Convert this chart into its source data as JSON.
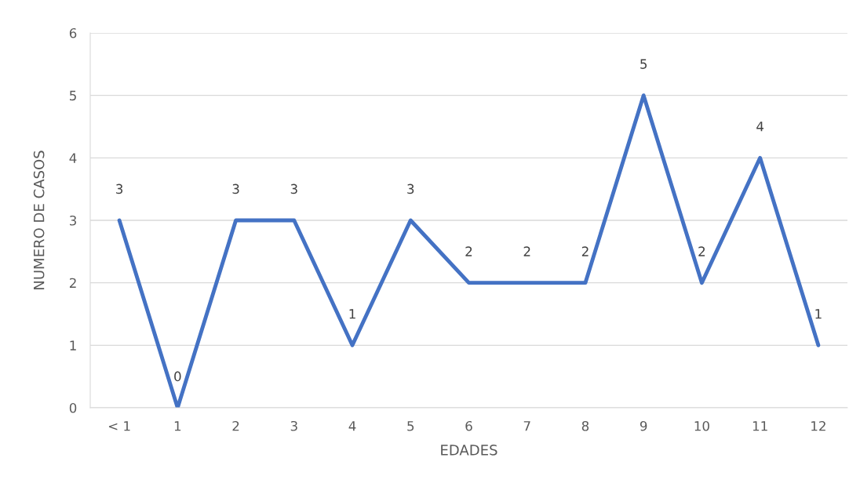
{
  "chart_data": {
    "type": "line",
    "xlabel": "EDADES",
    "ylabel": "NUMERO DE CASOS",
    "categories": [
      "< 1",
      "1",
      "2",
      "3",
      "4",
      "5",
      "6",
      "7",
      "8",
      "9",
      "10",
      "11",
      "12"
    ],
    "series": [
      {
        "color": "#4472c4",
        "values": [
          3,
          0,
          3,
          3,
          1,
          3,
          2,
          2,
          2,
          5,
          2,
          4,
          1
        ]
      }
    ],
    "ylim": [
      0,
      6
    ],
    "yticks": [
      0,
      1,
      2,
      3,
      4,
      5,
      6
    ],
    "grid": "y",
    "legend": false,
    "marker": "none",
    "line_style": "solid",
    "data_labels": true
  }
}
